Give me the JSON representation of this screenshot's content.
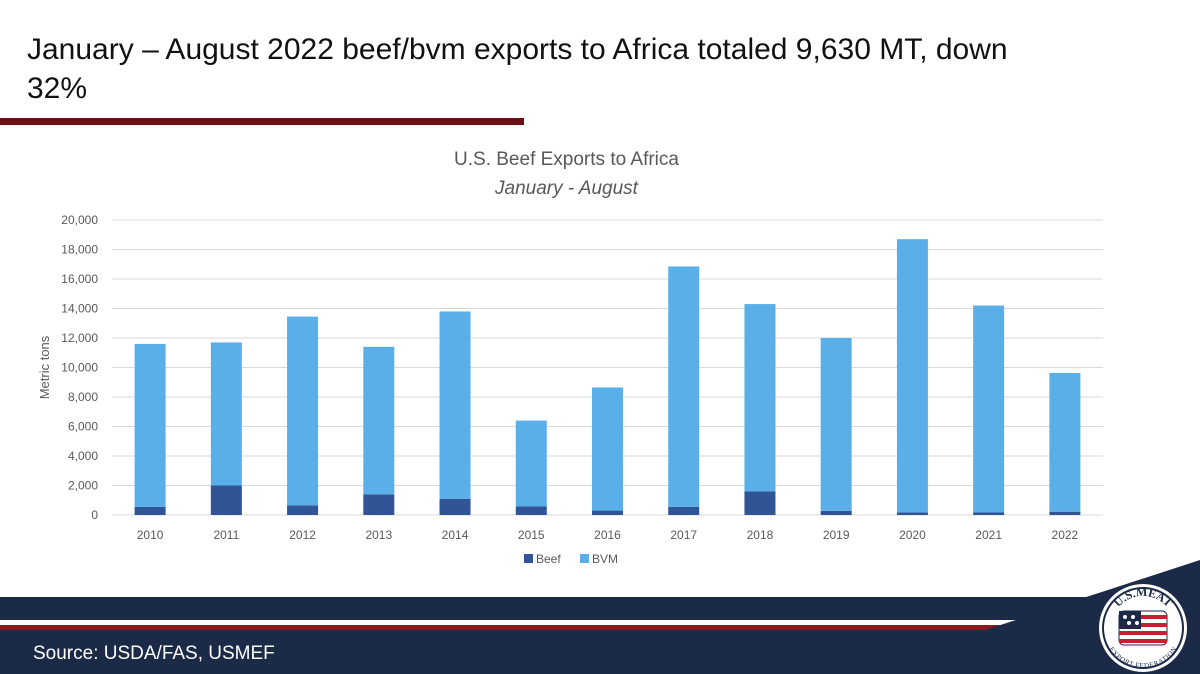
{
  "slide": {
    "title": "January – August 2022 beef/bvm exports to Africa totaled 9,630 MT, down 32%",
    "source": "Source: USDA/FAS, USMEF"
  },
  "logo": {
    "top_text": "U.S.MEAT",
    "bottom_text": "EXPORT FEDERATION"
  },
  "colors": {
    "title_rule": "#6e0f16",
    "footer_band": "#1b2a47",
    "footer_red": "#8b1a1f",
    "beef": "#2f5597",
    "bvm": "#5aafe8"
  },
  "chart_data": {
    "type": "bar",
    "stacked": true,
    "title": "U.S. Beef Exports to Africa",
    "subtitle": "January - August",
    "xlabel": "",
    "ylabel": "Metric tons",
    "ylim": [
      0,
      20000
    ],
    "yticks": [
      0,
      2000,
      4000,
      6000,
      8000,
      10000,
      12000,
      14000,
      16000,
      18000,
      20000
    ],
    "ytick_labels": [
      "0",
      "2,000",
      "4,000",
      "6,000",
      "8,000",
      "10,000",
      "12,000",
      "14,000",
      "16,000",
      "18,000",
      "20,000"
    ],
    "grid": true,
    "legend_position": "bottom",
    "categories": [
      "2010",
      "2011",
      "2012",
      "2013",
      "2014",
      "2015",
      "2016",
      "2017",
      "2018",
      "2019",
      "2020",
      "2021",
      "2022"
    ],
    "series": [
      {
        "name": "Beef",
        "color": "#2f5597",
        "values": [
          550,
          2000,
          650,
          1400,
          1100,
          580,
          300,
          550,
          1600,
          280,
          180,
          170,
          220
        ]
      },
      {
        "name": "BVM",
        "color": "#5aafe8",
        "values": [
          11050,
          9700,
          12800,
          10000,
          12700,
          5820,
          8350,
          16300,
          12700,
          11720,
          18520,
          14030,
          9410
        ]
      }
    ]
  }
}
